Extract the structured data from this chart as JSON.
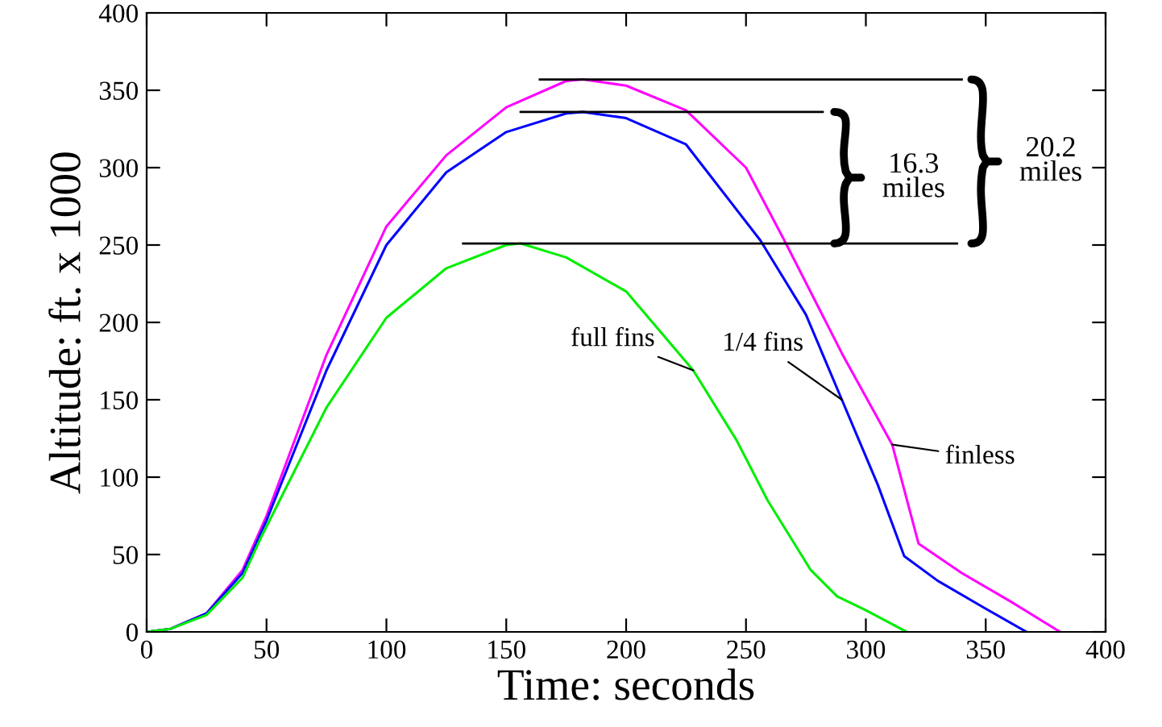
{
  "chart_data": {
    "type": "line",
    "xlabel": "Time: seconds",
    "ylabel": "Altitude: ft. x 1000",
    "xlim": [
      0,
      400
    ],
    "ylim": [
      0,
      400
    ],
    "xticks": [
      0,
      50,
      100,
      150,
      200,
      250,
      300,
      350,
      400
    ],
    "yticks": [
      0,
      50,
      100,
      150,
      200,
      250,
      300,
      350,
      400
    ],
    "grid": false,
    "legend": false,
    "marker": "none",
    "line_style": "solid",
    "series": [
      {
        "name": "finless",
        "color": "#ff00ff",
        "x": [
          0,
          10,
          25,
          40,
          50,
          75,
          100,
          125,
          150,
          175,
          182,
          200,
          225,
          250,
          266,
          290,
          311,
          322,
          340,
          360,
          381
        ],
        "values": [
          0,
          2,
          12,
          40,
          75,
          179,
          262,
          308,
          339,
          356,
          357,
          353,
          337,
          300,
          253,
          180,
          121,
          57,
          38,
          20,
          0
        ]
      },
      {
        "name": "1/4 fins",
        "color": "#0000ff",
        "x": [
          0,
          10,
          25,
          40,
          50,
          75,
          100,
          125,
          150,
          175,
          182,
          200,
          225,
          256,
          275,
          290,
          305,
          316,
          330,
          350,
          367
        ],
        "values": [
          0,
          2,
          12,
          38,
          72,
          169,
          250,
          297,
          323,
          335,
          336,
          332,
          315,
          253,
          205,
          150,
          95,
          49,
          33,
          15,
          0
        ]
      },
      {
        "name": "full fins",
        "color": "#00ee00",
        "x": [
          0,
          10,
          25,
          40,
          48,
          75,
          100,
          125,
          150,
          156,
          175,
          200,
          228,
          246,
          259,
          277,
          288,
          300,
          317
        ],
        "values": [
          0,
          2,
          11,
          35,
          62,
          145,
          203,
          235,
          250,
          251,
          242,
          220,
          169,
          124,
          85,
          40,
          23,
          14,
          0
        ]
      }
    ],
    "ref_lines": [
      {
        "axis": "y",
        "value": 357,
        "color": "#000000"
      },
      {
        "axis": "y",
        "value": 336,
        "color": "#000000"
      },
      {
        "axis": "y",
        "value": 251,
        "color": "#000000"
      }
    ],
    "annotations": [
      "16.3\nmiles",
      "20.2\nmiles"
    ]
  }
}
